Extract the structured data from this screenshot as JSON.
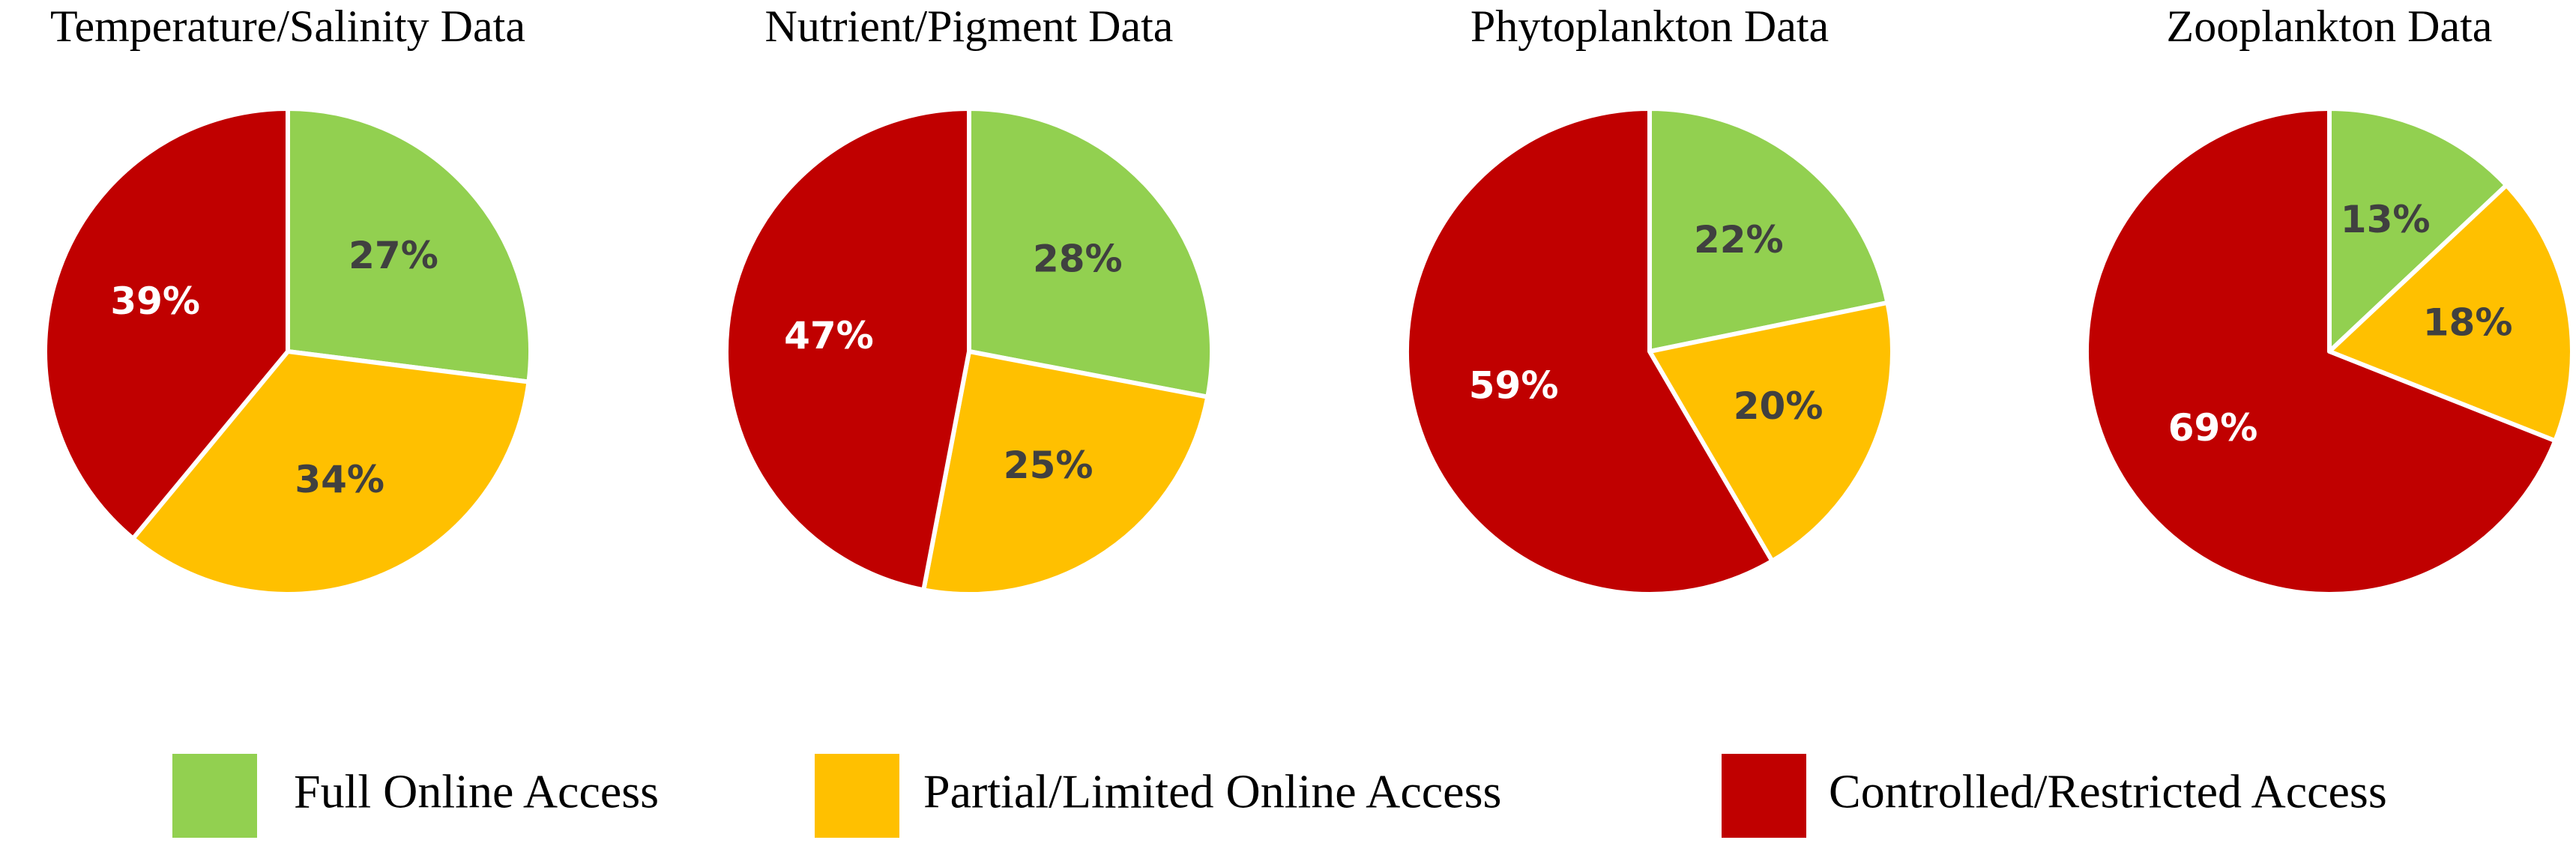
{
  "chart_data": [
    {
      "type": "pie",
      "title": "Temperature/Salinity Data",
      "categories": [
        "Full Online Access",
        "Partial/Limited Online Access",
        "Controlled/Restricted Access"
      ],
      "values": [
        27,
        34,
        39
      ],
      "value_labels": [
        "27%",
        "34%",
        "39%"
      ],
      "colors": [
        "#92d050",
        "#ffc000",
        "#c00000"
      ],
      "label_colors": [
        "#404040",
        "#404040",
        "#ffffff"
      ]
    },
    {
      "type": "pie",
      "title": "Nutrient/Pigment Data",
      "categories": [
        "Full Online Access",
        "Partial/Limited Online Access",
        "Controlled/Restricted Access"
      ],
      "values": [
        28,
        25,
        47
      ],
      "value_labels": [
        "28%",
        "25%",
        "47%"
      ],
      "colors": [
        "#92d050",
        "#ffc000",
        "#c00000"
      ],
      "label_colors": [
        "#404040",
        "#404040",
        "#ffffff"
      ]
    },
    {
      "type": "pie",
      "title": "Phytoplankton Data",
      "categories": [
        "Full Online Access",
        "Partial/Limited Online Access",
        "Controlled/Restricted Access"
      ],
      "values": [
        22,
        20,
        59
      ],
      "value_labels": [
        "22%",
        "20%",
        "59%"
      ],
      "colors": [
        "#92d050",
        "#ffc000",
        "#c00000"
      ],
      "label_colors": [
        "#404040",
        "#404040",
        "#ffffff"
      ]
    },
    {
      "type": "pie",
      "title": "Zooplankton Data",
      "categories": [
        "Full Online Access",
        "Partial/Limited Online Access",
        "Controlled/Restricted Access"
      ],
      "values": [
        13,
        18,
        69
      ],
      "value_labels": [
        "13%",
        "18%",
        "69%"
      ],
      "colors": [
        "#92d050",
        "#ffc000",
        "#c00000"
      ],
      "label_colors": [
        "#404040",
        "#404040",
        "#ffffff"
      ]
    }
  ]
}
